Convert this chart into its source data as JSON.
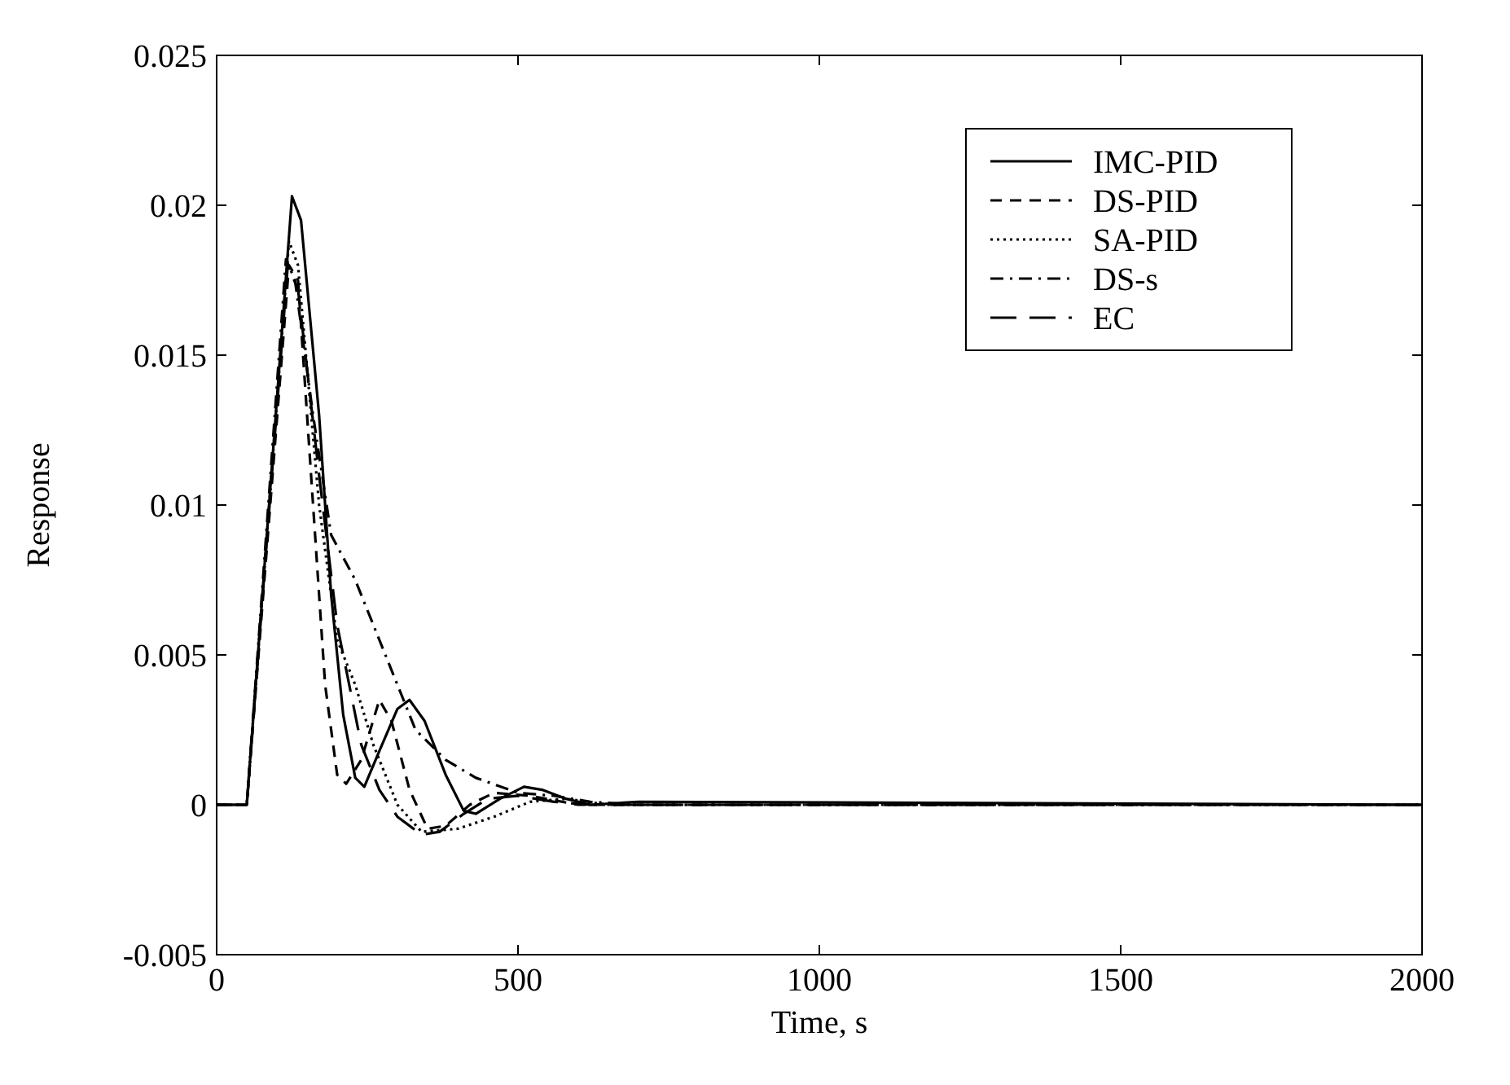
{
  "chart_data": {
    "type": "line",
    "xlabel": "Time, s",
    "ylabel": "Response",
    "xlim": [
      0,
      2000
    ],
    "ylim": [
      -0.005,
      0.025
    ],
    "xticks": [
      0,
      500,
      1000,
      1500,
      2000
    ],
    "yticks": [
      -0.005,
      0,
      0.005,
      0.01,
      0.015,
      0.02,
      0.025
    ],
    "grid": false,
    "legend": "top right",
    "series": [
      {
        "name": "IMC-PID",
        "color": "#000000",
        "line_style": "solid",
        "x": [
          0,
          50,
          125,
          140,
          170,
          190,
          210,
          230,
          245,
          270,
          300,
          320,
          345,
          380,
          410,
          430,
          470,
          510,
          540,
          580,
          620,
          700,
          2000
        ],
        "values": [
          0,
          0,
          0.0203,
          0.0195,
          0.013,
          0.007,
          0.003,
          0.0009,
          0.0006,
          0.0018,
          0.0032,
          0.0035,
          0.0028,
          0.001,
          -0.0002,
          -0.0003,
          0.0002,
          0.0006,
          0.0005,
          0.0002,
          0,
          0.0001,
          0
        ]
      },
      {
        "name": "DS-PID",
        "color": "#000000",
        "line_style": "dashed",
        "x": [
          0,
          50,
          120,
          135,
          160,
          180,
          200,
          215,
          240,
          270,
          290,
          320,
          350,
          380,
          420,
          460,
          520,
          600,
          2000
        ],
        "values": [
          0,
          0,
          0.018,
          0.0175,
          0.01,
          0.004,
          0.001,
          0.0007,
          0.0015,
          0.0035,
          0.0028,
          0.0005,
          -0.0008,
          -0.0007,
          0,
          0.0004,
          0.0003,
          0,
          0
        ]
      },
      {
        "name": "SA-PID",
        "color": "#000000",
        "line_style": "dotted",
        "x": [
          0,
          50,
          120,
          135,
          170,
          200,
          230,
          260,
          300,
          340,
          400,
          460,
          520,
          580,
          650,
          2000
        ],
        "values": [
          0,
          0,
          0.0188,
          0.018,
          0.01,
          0.0055,
          0.004,
          0.002,
          0,
          -0.0009,
          -0.0008,
          -0.0004,
          0.0001,
          0.0002,
          0,
          0
        ]
      },
      {
        "name": "DS-s",
        "color": "#000000",
        "line_style": "dashdot",
        "x": [
          0,
          50,
          115,
          130,
          160,
          190,
          230,
          280,
          330,
          380,
          430,
          500,
          560,
          620,
          700,
          2000
        ],
        "values": [
          0,
          0,
          0.0182,
          0.0175,
          0.013,
          0.009,
          0.0075,
          0.005,
          0.0025,
          0.0015,
          0.0009,
          0.0004,
          0.0003,
          0.0001,
          0,
          0
        ]
      },
      {
        "name": "EC",
        "color": "#000000",
        "line_style": "longdash",
        "x": [
          0,
          50,
          118,
          135,
          170,
          200,
          240,
          270,
          300,
          340,
          370,
          410,
          450,
          500,
          560,
          620,
          2000
        ],
        "values": [
          0,
          0,
          0.018,
          0.0172,
          0.011,
          0.006,
          0.002,
          0.0005,
          -0.0004,
          -0.001,
          -0.0009,
          -0.0003,
          0.0002,
          0.0003,
          0.0001,
          0,
          0
        ]
      }
    ]
  }
}
